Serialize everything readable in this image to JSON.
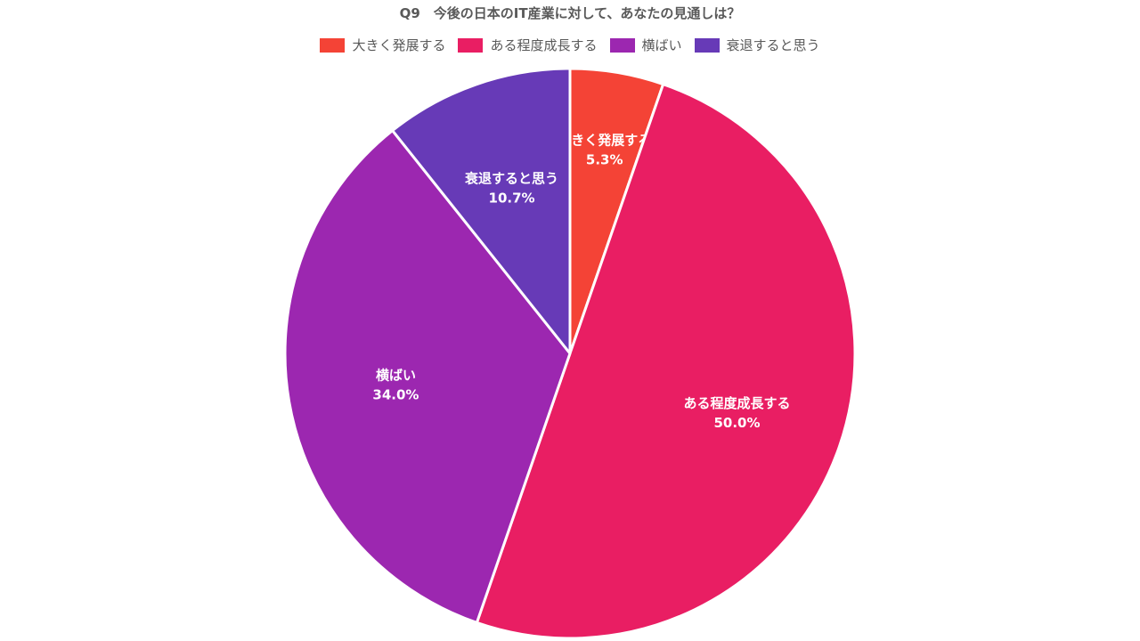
{
  "chart_data": {
    "type": "pie",
    "title": "Q9　今後の日本のIT産業に対して、あなたの見通しは？",
    "legend": "top",
    "slices": [
      {
        "label": "大きく発展する",
        "value": 5.3,
        "value_label": "5.3%",
        "color": "#F44336"
      },
      {
        "label": "ある程度成長する",
        "value": 50.0,
        "value_label": "50.0%",
        "color": "#E91E63"
      },
      {
        "label": "横ばい",
        "value": 34.0,
        "value_label": "34.0%",
        "color": "#9C27B0"
      },
      {
        "label": "衰退すると思う",
        "value": 10.7,
        "value_label": "10.7%",
        "color": "#673AB7"
      }
    ]
  }
}
